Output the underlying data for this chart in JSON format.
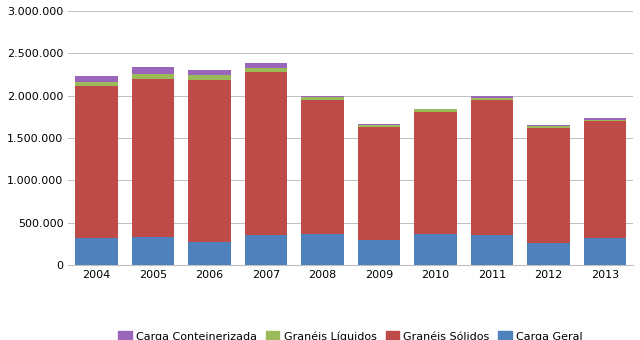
{
  "years": [
    "2004",
    "2005",
    "2006",
    "2007",
    "2008",
    "2009",
    "2010",
    "2011",
    "2012",
    "2013"
  ],
  "carga_geral": [
    317269,
    332260,
    268000,
    362000,
    372000,
    298000,
    373000,
    362000,
    265000,
    322000
  ],
  "graneis_solidos": [
    1799727,
    1868000,
    1918000,
    1918000,
    1582000,
    1338000,
    1438000,
    1586000,
    1358000,
    1378000
  ],
  "graneis_liquidos": [
    48659,
    52000,
    58000,
    52000,
    28000,
    22000,
    28000,
    22000,
    22000,
    18000
  ],
  "carga_conteinerizada": [
    61344,
    82000,
    56000,
    56000,
    18000,
    4000,
    8000,
    28000,
    14000,
    14000
  ],
  "colors": {
    "carga_conteinerizada": "#9966BB",
    "graneis_liquidos": "#9BBB59",
    "graneis_solidos": "#BE4B48",
    "carga_geral": "#4F81BD"
  },
  "ylim": [
    0,
    3000000
  ],
  "yticks": [
    0,
    500000,
    1000000,
    1500000,
    2000000,
    2500000,
    3000000
  ],
  "legend_labels": [
    "Carga Conteinerizada",
    "Granéis Líquidos",
    "Granéis Sólidos",
    "Carga Geral"
  ],
  "bg_color": "#FFFFFF",
  "plot_bg_color": "#FFFFFF",
  "bar_width": 0.75,
  "tick_fontsize": 8,
  "legend_fontsize": 8
}
